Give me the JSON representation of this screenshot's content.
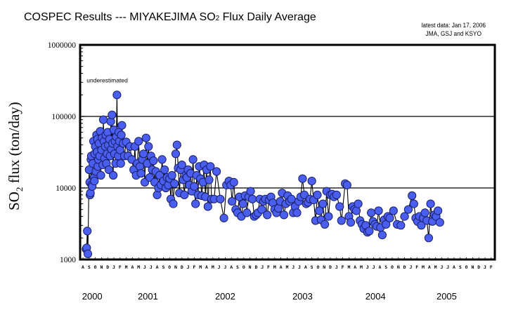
{
  "header": {
    "title_prefix": "COSPEC Results --- MIYAKEJIMA SO",
    "title_sub": "2",
    "title_suffix": " Flux Daily Average",
    "note_line1": "latest data: Jan 17, 2006",
    "note_line2": "JMA, GSJ and KSYO"
  },
  "colors": {
    "marker_fill": "#4a5ef0",
    "marker_stroke": "#1a1f66",
    "line": "#000000",
    "grid": "#000000",
    "background": "#ffffff"
  },
  "chart_data": {
    "type": "scatter",
    "title": "COSPEC Results --- MIYAKEJIMA SO2 Flux Daily Average",
    "xlabel": "",
    "ylabel_prefix": "SO",
    "ylabel_sub": "2",
    "ylabel_suffix": " flux (ton/day)",
    "yscale": "log",
    "ylim": [
      1000,
      1000000
    ],
    "yticks": [
      {
        "value": 1000,
        "label": "1000"
      },
      {
        "value": 10000,
        "label": "10000"
      },
      {
        "value": 100000,
        "label": "100000"
      },
      {
        "value": 1000000,
        "label": "1000000"
      }
    ],
    "grid_values": [
      10000,
      100000
    ],
    "x_unit": "months since 2000-08-01",
    "xlim": [
      0,
      66
    ],
    "month_labels": [
      "A",
      "S",
      "O",
      "N",
      "D",
      "J",
      "F",
      "M",
      "A",
      "M",
      "J",
      "J",
      "A",
      "S",
      "O",
      "N",
      "D",
      "J",
      "F",
      "M",
      "A",
      "M",
      "J",
      "J",
      "A",
      "S",
      "O",
      "N",
      "D",
      "J",
      "F",
      "M",
      "A",
      "M",
      "J",
      "J",
      "A",
      "S",
      "O",
      "N",
      "D",
      "J",
      "F",
      "M",
      "A",
      "M",
      "J",
      "J",
      "A",
      "S",
      "O",
      "N",
      "D",
      "J",
      "F",
      "M",
      "A",
      "M",
      "J",
      "J",
      "A",
      "S",
      "O",
      "N",
      "D",
      "J",
      "F"
    ],
    "year_labels": [
      {
        "label": "2000",
        "at_month": 1.5
      },
      {
        "label": "2001",
        "at_month": 10.5
      },
      {
        "label": "2002",
        "at_month": 23
      },
      {
        "label": "2003",
        "at_month": 35.5
      },
      {
        "label": "2004",
        "at_month": 47.3
      },
      {
        "label": "2005",
        "at_month": 58.8
      }
    ],
    "annotations": [
      {
        "text": "underestimated",
        "at_month": 0.6,
        "value": 300000
      }
    ],
    "series": [
      {
        "name": "SO2 flux daily average",
        "points": [
          [
            0.5,
            1400
          ],
          [
            0.6,
            1450
          ],
          [
            0.7,
            2500
          ],
          [
            0.8,
            1200
          ],
          [
            1.0,
            18000
          ],
          [
            1.1,
            12000
          ],
          [
            1.15,
            8000
          ],
          [
            1.2,
            8500
          ],
          [
            1.3,
            25000
          ],
          [
            1.35,
            28000
          ],
          [
            1.4,
            11000
          ],
          [
            1.5,
            10500
          ],
          [
            1.6,
            22000
          ],
          [
            1.7,
            45000
          ],
          [
            1.8,
            14000
          ],
          [
            1.85,
            12500
          ],
          [
            1.9,
            30000
          ],
          [
            2.0,
            38000
          ],
          [
            2.1,
            17000
          ],
          [
            2.2,
            55000
          ],
          [
            2.3,
            32000
          ],
          [
            2.35,
            48000
          ],
          [
            2.4,
            20000
          ],
          [
            2.5,
            25000
          ],
          [
            2.6,
            42000
          ],
          [
            2.7,
            28000
          ],
          [
            2.8,
            62000
          ],
          [
            2.9,
            15000
          ],
          [
            3.0,
            34000
          ],
          [
            3.1,
            50000
          ],
          [
            3.2,
            21000
          ],
          [
            3.3,
            90000
          ],
          [
            3.4,
            45000
          ],
          [
            3.5,
            26000
          ],
          [
            3.6,
            38000
          ],
          [
            3.7,
            55000
          ],
          [
            3.8,
            22000
          ],
          [
            3.9,
            30000
          ],
          [
            4.0,
            60000
          ],
          [
            4.1,
            40000
          ],
          [
            4.2,
            18000
          ],
          [
            4.3,
            48000
          ],
          [
            4.4,
            28000
          ],
          [
            4.5,
            85000
          ],
          [
            4.6,
            35000
          ],
          [
            4.7,
            105000
          ],
          [
            4.8,
            42000
          ],
          [
            4.9,
            15000
          ],
          [
            5.0,
            65000
          ],
          [
            5.1,
            30000
          ],
          [
            5.2,
            45000
          ],
          [
            5.3,
            22000
          ],
          [
            5.4,
            52000
          ],
          [
            5.5,
            200000
          ],
          [
            5.6,
            38000
          ],
          [
            5.7,
            28000
          ],
          [
            5.8,
            60000
          ],
          [
            5.9,
            45000
          ],
          [
            6.0,
            34000
          ],
          [
            6.1,
            22000
          ],
          [
            6.2,
            55000
          ],
          [
            6.3,
            75000
          ],
          [
            6.5,
            42000
          ],
          [
            6.7,
            28000
          ],
          [
            7.0,
            44000
          ],
          [
            7.3,
            28000
          ],
          [
            7.6,
            38000
          ],
          [
            7.9,
            25000
          ],
          [
            8.2,
            18000
          ],
          [
            8.4,
            38000
          ],
          [
            8.6,
            15000
          ],
          [
            8.8,
            22000
          ],
          [
            9.0,
            45000
          ],
          [
            9.2,
            20000
          ],
          [
            9.4,
            16000
          ],
          [
            9.6,
            25000
          ],
          [
            9.8,
            30000
          ],
          [
            10.0,
            12000
          ],
          [
            10.2,
            50000
          ],
          [
            10.4,
            22000
          ],
          [
            10.6,
            38000
          ],
          [
            10.8,
            14000
          ],
          [
            11.0,
            28000
          ],
          [
            11.2,
            18000
          ],
          [
            11.4,
            24000
          ],
          [
            11.6,
            12000
          ],
          [
            11.8,
            17000
          ],
          [
            12.0,
            8000
          ],
          [
            12.2,
            10000
          ],
          [
            12.4,
            15000
          ],
          [
            12.6,
            11000
          ],
          [
            12.8,
            25000
          ],
          [
            13.0,
            12500
          ],
          [
            13.2,
            18000
          ],
          [
            13.4,
            10000
          ],
          [
            13.6,
            14000
          ],
          [
            13.8,
            11000
          ],
          [
            14.0,
            13500
          ],
          [
            14.2,
            7000
          ],
          [
            14.4,
            15000
          ],
          [
            14.6,
            6000
          ],
          [
            14.8,
            11500
          ],
          [
            15.0,
            30000
          ],
          [
            15.2,
            40000
          ],
          [
            15.4,
            19000
          ],
          [
            15.6,
            8500
          ],
          [
            15.8,
            18000
          ],
          [
            16.0,
            21000
          ],
          [
            16.2,
            13000
          ],
          [
            16.4,
            8000
          ],
          [
            16.6,
            15000
          ],
          [
            16.8,
            14000
          ],
          [
            17.0,
            18000
          ],
          [
            17.2,
            11000
          ],
          [
            17.4,
            16000
          ],
          [
            17.6,
            9000
          ],
          [
            17.8,
            25000
          ],
          [
            18.0,
            10500
          ],
          [
            18.2,
            6000
          ],
          [
            18.4,
            15000
          ],
          [
            18.6,
            8000
          ],
          [
            18.8,
            20000
          ],
          [
            19.0,
            13500
          ],
          [
            19.2,
            7800
          ],
          [
            19.4,
            12000
          ],
          [
            19.6,
            21000
          ],
          [
            19.8,
            7500
          ],
          [
            20.0,
            18000
          ],
          [
            20.2,
            5500
          ],
          [
            20.4,
            13000
          ],
          [
            20.6,
            20000
          ],
          [
            20.8,
            7000
          ],
          [
            21.2,
            7000
          ],
          [
            21.6,
            17000
          ],
          [
            22.2,
            7000
          ],
          [
            22.8,
            3800
          ],
          [
            23.2,
            11000
          ],
          [
            23.6,
            12500
          ],
          [
            23.9,
            11000
          ],
          [
            24.1,
            6500
          ],
          [
            24.4,
            12000
          ],
          [
            24.7,
            5000
          ],
          [
            25.0,
            4500
          ],
          [
            25.3,
            7500
          ],
          [
            25.6,
            4000
          ],
          [
            25.9,
            6000
          ],
          [
            26.2,
            7800
          ],
          [
            26.5,
            4500
          ],
          [
            26.8,
            7500
          ],
          [
            27.1,
            9000
          ],
          [
            27.4,
            7000
          ],
          [
            27.7,
            4000
          ],
          [
            28.0,
            4200
          ],
          [
            28.3,
            4500
          ],
          [
            28.6,
            7000
          ],
          [
            28.9,
            5000
          ],
          [
            29.2,
            6500
          ],
          [
            29.5,
            7000
          ],
          [
            29.8,
            4200
          ],
          [
            30.1,
            6800
          ],
          [
            30.4,
            7500
          ],
          [
            30.7,
            6200
          ],
          [
            31.0,
            5000
          ],
          [
            31.3,
            4500
          ],
          [
            31.6,
            5200
          ],
          [
            31.9,
            6500
          ],
          [
            32.2,
            8500
          ],
          [
            32.5,
            4200
          ],
          [
            32.8,
            6000
          ],
          [
            33.1,
            7800
          ],
          [
            33.4,
            6500
          ],
          [
            33.7,
            7000
          ],
          [
            34.0,
            4500
          ],
          [
            34.3,
            5500
          ],
          [
            34.6,
            4500
          ],
          [
            34.9,
            6500
          ],
          [
            35.2,
            7500
          ],
          [
            35.5,
            13500
          ],
          [
            35.8,
            8000
          ],
          [
            36.1,
            6000
          ],
          [
            36.4,
            6300
          ],
          [
            36.7,
            7000
          ],
          [
            37.0,
            12500
          ],
          [
            37.3,
            6800
          ],
          [
            37.6,
            3500
          ],
          [
            37.9,
            8000
          ],
          [
            38.2,
            4800
          ],
          [
            38.5,
            3600
          ],
          [
            38.8,
            6000
          ],
          [
            39.1,
            3100
          ],
          [
            39.4,
            9000
          ],
          [
            39.7,
            4000
          ],
          [
            40.0,
            8000
          ],
          [
            40.3,
            8200
          ],
          [
            40.6,
            7500
          ],
          [
            41.0,
            8000
          ],
          [
            41.5,
            5500
          ],
          [
            41.8,
            3500
          ],
          [
            42.4,
            11500
          ],
          [
            42.7,
            11000
          ],
          [
            43.0,
            4000
          ],
          [
            43.3,
            3300
          ],
          [
            43.6,
            5500
          ],
          [
            43.9,
            5000
          ],
          [
            44.2,
            4800
          ],
          [
            44.5,
            6000
          ],
          [
            44.8,
            3500
          ],
          [
            45.1,
            3100
          ],
          [
            45.4,
            2700
          ],
          [
            45.7,
            3000
          ],
          [
            46.0,
            2400
          ],
          [
            46.3,
            2500
          ],
          [
            46.6,
            4500
          ],
          [
            46.9,
            3400
          ],
          [
            47.2,
            3100
          ],
          [
            47.5,
            2900
          ],
          [
            47.8,
            4800
          ],
          [
            48.1,
            2800
          ],
          [
            48.4,
            2200
          ],
          [
            48.7,
            3600
          ],
          [
            49.0,
            3100
          ],
          [
            49.3,
            4000
          ],
          [
            49.6,
            3800
          ],
          [
            50.2,
            4800
          ],
          [
            50.8,
            3100
          ],
          [
            51.4,
            3000
          ],
          [
            52.0,
            4000
          ],
          [
            52.6,
            5000
          ],
          [
            53.2,
            7800
          ],
          [
            53.5,
            6000
          ],
          [
            53.8,
            3800
          ],
          [
            54.1,
            3400
          ],
          [
            54.4,
            4000
          ],
          [
            54.7,
            3000
          ],
          [
            55.0,
            3800
          ],
          [
            55.3,
            4500
          ],
          [
            55.6,
            3500
          ],
          [
            55.9,
            2000
          ],
          [
            56.2,
            6000
          ],
          [
            56.5,
            3400
          ],
          [
            56.8,
            4200
          ],
          [
            57.1,
            4000
          ],
          [
            57.4,
            4800
          ],
          [
            57.7,
            3300
          ]
        ]
      }
    ]
  }
}
